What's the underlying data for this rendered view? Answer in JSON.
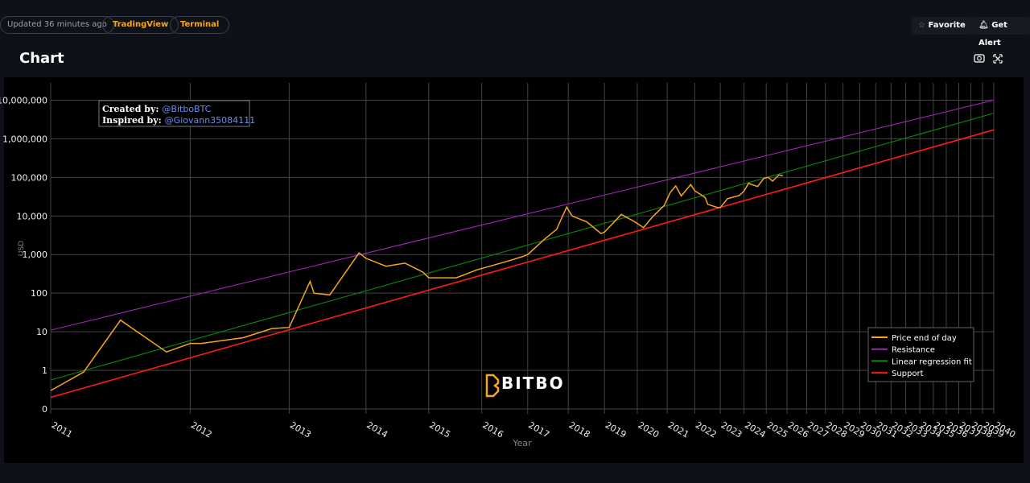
{
  "header": {
    "updated": "Updated 36 minutes ago",
    "links": [
      "TradingView",
      "Terminal"
    ],
    "actions": [
      "Favorite",
      "Get Alert"
    ]
  },
  "section_title": "Chart",
  "chart_data": {
    "type": "line",
    "xlabel": "Year",
    "ylabel": "USD",
    "xscale": "log",
    "yscale": "log",
    "grid": true,
    "legend": "lower right",
    "annotations": [
      {
        "label": "Created by:",
        "text": "@BitboBTC"
      },
      {
        "label": "Inspired by:",
        "text": "@Giovann35084111"
      }
    ],
    "watermark": "BITBO",
    "xlim": [
      2011,
      2040
    ],
    "xticks": [
      2011,
      2012,
      2013,
      2014,
      2015,
      2016,
      2017,
      2018,
      2019,
      2020,
      2021,
      2022,
      2023,
      2024,
      2025,
      2026,
      2027,
      2028,
      2029,
      2030,
      2031,
      2032,
      2033,
      2034,
      2035,
      2036,
      2037,
      2038,
      2039,
      2040
    ],
    "ylim": [
      0.075,
      28000000
    ],
    "yticks": [
      {
        "value": 0.1,
        "label": "0"
      },
      1,
      10,
      100,
      {
        "value": 1000,
        "label": "1,000"
      },
      {
        "value": 10000,
        "label": "10,000"
      },
      {
        "value": 100000,
        "label": "100,000"
      },
      {
        "value": 1000000,
        "label": "1,000,000"
      },
      {
        "value": 10000000,
        "label": "10,000,000"
      }
    ],
    "series": [
      {
        "name": "Price end of day",
        "color": "#f5a623",
        "x": [
          2011.0,
          2011.2,
          2011.45,
          2011.5,
          2011.8,
          2012.0,
          2012.1,
          2012.5,
          2012.8,
          2013.0,
          2013.25,
          2013.3,
          2013.5,
          2013.9,
          2014.0,
          2014.3,
          2014.6,
          2014.9,
          2015.0,
          2015.5,
          2015.9,
          2016.5,
          2016.9,
          2017.0,
          2017.4,
          2017.7,
          2017.96,
          2018.1,
          2018.5,
          2018.9,
          2019.0,
          2019.5,
          2019.9,
          2020.2,
          2020.5,
          2020.9,
          2021.1,
          2021.3,
          2021.5,
          2021.85,
          2022.0,
          2022.4,
          2022.5,
          2022.9,
          2023.0,
          2023.3,
          2023.8,
          2024.0,
          2024.2,
          2024.6,
          2024.9,
          2025.1,
          2025.3,
          2025.6,
          2025.8
        ],
        "values": [
          0.3,
          0.9,
          20,
          15,
          3,
          5,
          5,
          7,
          12,
          13,
          200,
          100,
          90,
          1100,
          800,
          500,
          600,
          350,
          250,
          250,
          400,
          650,
          900,
          1000,
          2500,
          4500,
          17000,
          10000,
          7000,
          3500,
          3800,
          11000,
          7200,
          5000,
          9500,
          19000,
          40000,
          60000,
          33000,
          65000,
          45000,
          30000,
          20000,
          16500,
          16600,
          28000,
          34000,
          44000,
          70000,
          58000,
          95000,
          100000,
          80000,
          115000,
          110000
        ]
      },
      {
        "name": "Resistance",
        "color": "#9c27b0",
        "x": [
          2011,
          2040
        ],
        "values": [
          11,
          10000000
        ]
      },
      {
        "name": "Linear regression fit",
        "color": "#0a8a0a",
        "x": [
          2011,
          2040
        ],
        "values": [
          0.56,
          4600000
        ]
      },
      {
        "name": "Support",
        "color": "#ff1a1a",
        "x": [
          2011,
          2040
        ],
        "values": [
          0.2,
          1700000
        ]
      }
    ]
  }
}
